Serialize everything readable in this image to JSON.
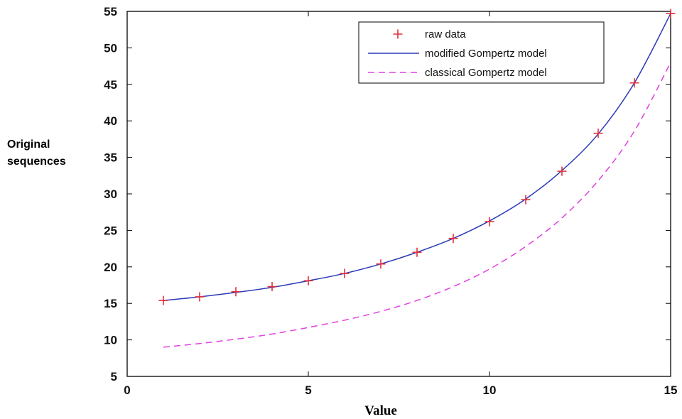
{
  "chart_data": {
    "type": "line",
    "xlabel": "Value",
    "ylabel": [
      "Original",
      "sequences"
    ],
    "xlim": [
      0,
      15
    ],
    "ylim": [
      5,
      55
    ],
    "xticks": [
      0,
      5,
      10,
      15
    ],
    "yticks": [
      5,
      10,
      15,
      20,
      25,
      30,
      35,
      40,
      45,
      50,
      55
    ],
    "grid": false,
    "legend_position": "top-right",
    "x": [
      1,
      2,
      3,
      4,
      5,
      6,
      7,
      8,
      9,
      10,
      11,
      12,
      13,
      14,
      15
    ],
    "series": [
      {
        "name": "raw data",
        "style": "markers",
        "color": "#e0303a",
        "values": [
          15.4,
          15.9,
          16.6,
          17.3,
          18.1,
          19.1,
          20.4,
          22.0,
          23.9,
          26.2,
          29.2,
          33.1,
          38.3,
          45.2,
          54.7
        ]
      },
      {
        "name": "modified Gompertz model",
        "style": "solid",
        "color": "#2c3ab8",
        "values": [
          15.4,
          15.9,
          16.5,
          17.2,
          18.1,
          19.1,
          20.4,
          22.0,
          23.9,
          26.3,
          29.3,
          33.2,
          38.2,
          45.2,
          54.7
        ]
      },
      {
        "name": "classical Gompertz model",
        "style": "dashed",
        "color": "#e040e0",
        "values": [
          9.0,
          9.5,
          10.1,
          10.8,
          11.7,
          12.7,
          13.9,
          15.4,
          17.3,
          19.7,
          22.8,
          26.7,
          31.8,
          38.6,
          48.0
        ]
      }
    ]
  }
}
